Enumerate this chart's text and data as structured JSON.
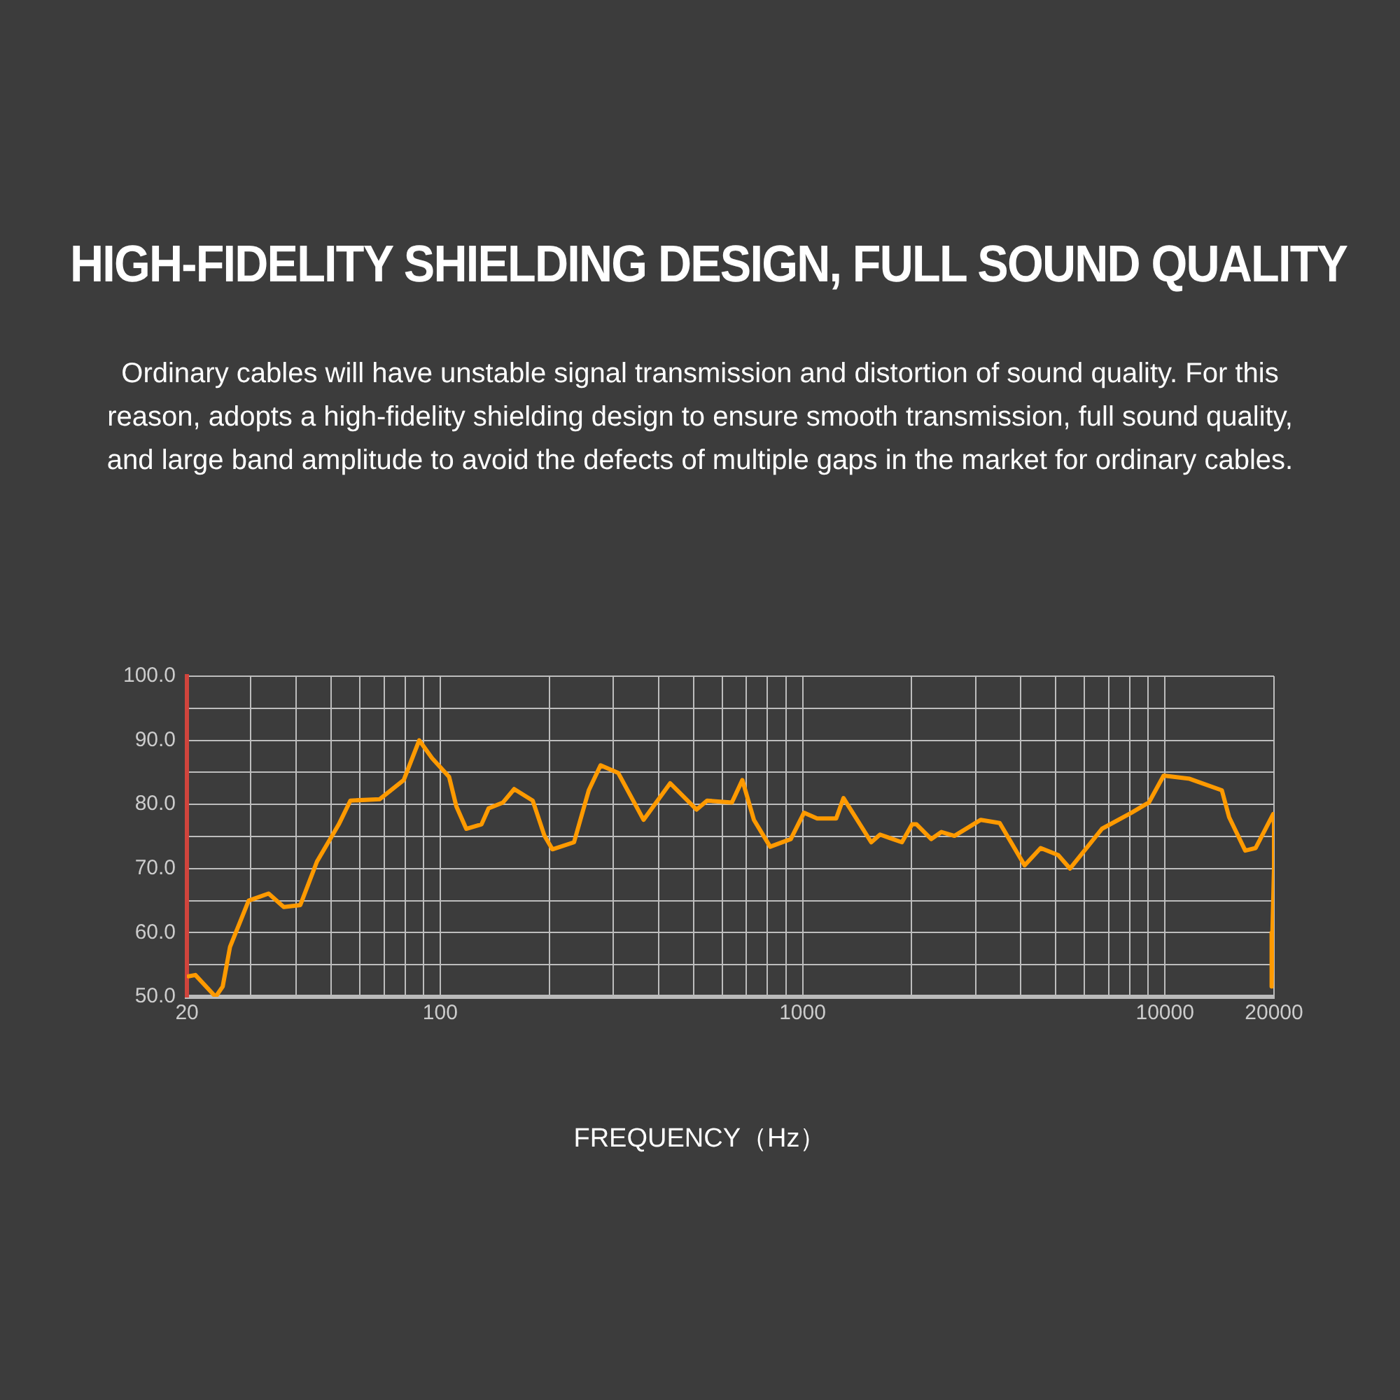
{
  "chart_data": {
    "type": "line",
    "title": "HIGH-FIDELITY SHIELDING DESIGN, FULL SOUND QUALITY",
    "subtitle": "Ordinary cables will have unstable signal transmission and distortion of sound quality. For this reason, adopts a high-fidelity shielding design to ensure smooth transmission, full sound quality, and large band amplitude to avoid the defects of multiple gaps in the market for ordinary cables.",
    "xlabel": "FREQUENCY（Hz）",
    "color": "#ff9a00",
    "marker": "none",
    "line_style": "solid",
    "log": "x",
    "grid": true,
    "x": [
      20.2,
      21.1,
      24,
      25.1,
      26.3,
      29.6,
      33.6,
      37,
      41.1,
      45.7,
      52.5,
      56.5,
      68,
      79.3,
      87.5,
      95,
      105.8,
      110.8,
      118,
      130,
      136,
      149,
      160,
      180,
      194,
      204,
      234,
      257,
      277,
      310,
      364,
      431,
      510,
      545,
      638,
      682,
      734,
      814,
      928,
      1009,
      1097,
      1238,
      1297,
      1547,
      1636,
      1880,
      2006,
      2063,
      2264,
      2417,
      2625,
      3103,
      3500,
      4100,
      4540,
      5075,
      5470,
      6700,
      8080,
      9030,
      9920,
      11700,
      14360,
      15040,
      16660,
      17800,
      19900,
      20000,
      20000,
      19800,
      19700
    ],
    "values": [
      53.2,
      53.4,
      50,
      51.6,
      57.8,
      65,
      66.1,
      64,
      64.3,
      71.1,
      76.9,
      80.6,
      80.8,
      83.8,
      90,
      87.2,
      84.3,
      79.7,
      76.2,
      76.9,
      79.4,
      80.3,
      82.4,
      80.6,
      75.1,
      73,
      74.1,
      82.2,
      86.1,
      84.9,
      77.6,
      83.3,
      79.2,
      80.6,
      80.3,
      83.8,
      77.6,
      73.4,
      74.6,
      78.7,
      77.8,
      77.8,
      81,
      74.1,
      75.3,
      74.1,
      76.9,
      76.9,
      74.6,
      75.7,
      75.1,
      77.6,
      77.1,
      70.5,
      73.2,
      72.1,
      70,
      76.2,
      78.7,
      80.3,
      84.5,
      84,
      82.2,
      78,
      72.8,
      73.2,
      78.5,
      76.9,
      70,
      60,
      51.6
    ],
    "xlim": [
      20,
      20000
    ],
    "ylim": [
      50,
      100
    ],
    "xticks": [
      20,
      {
        "value": 30,
        "label": null
      },
      {
        "value": 40,
        "label": null
      },
      {
        "value": 50,
        "label": null
      },
      {
        "value": 60,
        "label": null
      },
      {
        "value": 70,
        "label": null
      },
      {
        "value": 80,
        "label": null
      },
      {
        "value": 90,
        "label": null
      },
      100,
      {
        "value": 200,
        "label": null
      },
      {
        "value": 300,
        "label": null
      },
      {
        "value": 400,
        "label": null
      },
      {
        "value": 500,
        "label": null
      },
      {
        "value": 600,
        "label": null
      },
      {
        "value": 700,
        "label": null
      },
      {
        "value": 800,
        "label": null
      },
      {
        "value": 900,
        "label": null
      },
      1000,
      {
        "value": 2000,
        "label": null
      },
      {
        "value": 3000,
        "label": null
      },
      {
        "value": 4000,
        "label": null
      },
      {
        "value": 5000,
        "label": null
      },
      {
        "value": 6000,
        "label": null
      },
      {
        "value": 7000,
        "label": null
      },
      {
        "value": 8000,
        "label": null
      },
      {
        "value": 9000,
        "label": null
      },
      10000,
      20000
    ],
    "yticks": [
      {
        "value": 50,
        "label": "50.0"
      },
      {
        "value": 55,
        "label": null
      },
      {
        "value": 60,
        "label": "60.0"
      },
      {
        "value": 65,
        "label": null
      },
      {
        "value": 70,
        "label": "70.0"
      },
      {
        "value": 75,
        "label": null
      },
      {
        "value": 80,
        "label": "80.0"
      },
      {
        "value": 85,
        "label": null
      },
      {
        "value": 90,
        "label": "90.0"
      },
      {
        "value": 95,
        "label": null
      },
      {
        "value": 100,
        "label": "100.0"
      }
    ]
  }
}
